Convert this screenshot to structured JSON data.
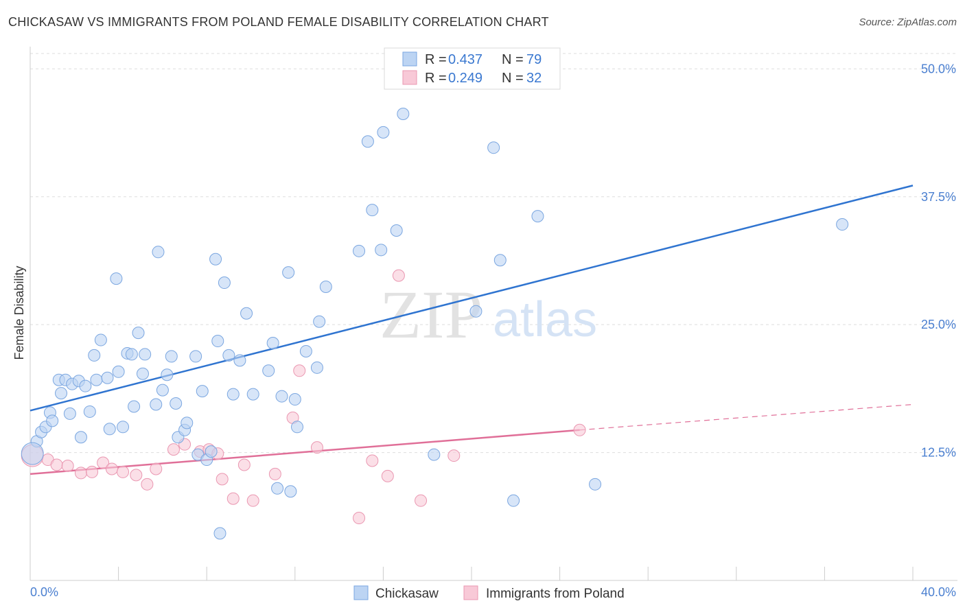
{
  "title": "CHICKASAW VS IMMIGRANTS FROM POLAND FEMALE DISABILITY CORRELATION CHART",
  "source": "Source: ZipAtlas.com",
  "watermark": {
    "zip": "ZIP",
    "atlas": "atlas"
  },
  "colors": {
    "blue_fill": "#bcd4f3",
    "blue_stroke": "#7aa6e0",
    "blue_line": "#2f74d0",
    "pink_fill": "#f8c9d7",
    "pink_stroke": "#ea97b1",
    "pink_line": "#e06f98",
    "grid": "#dddddd",
    "tick_label": "#4a7fd0"
  },
  "legend": {
    "rows": [
      {
        "r_label": "R = ",
        "r_value": "0.437",
        "n_label": "N = ",
        "n_value": "79"
      },
      {
        "r_label": "R = ",
        "r_value": "0.249",
        "n_label": "N = ",
        "n_value": "32"
      }
    ]
  },
  "chart_data": {
    "type": "scatter",
    "title": "CHICKASAW VS IMMIGRANTS FROM POLAND FEMALE DISABILITY CORRELATION CHART",
    "xlabel": "",
    "ylabel": "Female Disability",
    "xlim": [
      0,
      40
    ],
    "ylim": [
      0,
      51.5
    ],
    "x_tick_labels": [
      "0.0%",
      "40.0%"
    ],
    "y_ticks": [
      12.5,
      25.0,
      37.5,
      50.0
    ],
    "y_tick_labels": [
      "12.5%",
      "25.0%",
      "37.5%",
      "50.0%"
    ],
    "grid": "horizontal dashed",
    "legend_position": "top-center",
    "series": [
      {
        "name": "Chickasaw",
        "color": "#bcd4f3",
        "R": 0.437,
        "N": 79,
        "trend": {
          "x": [
            0,
            40
          ],
          "y": [
            16.6,
            38.6
          ],
          "style": "solid"
        },
        "points": [
          [
            0.3,
            13.6
          ],
          [
            0.5,
            14.5
          ],
          [
            0.7,
            15.0
          ],
          [
            0.9,
            16.4
          ],
          [
            1.0,
            15.6
          ],
          [
            1.3,
            19.6
          ],
          [
            1.4,
            18.3
          ],
          [
            1.6,
            19.6
          ],
          [
            1.8,
            16.3
          ],
          [
            1.9,
            19.2
          ],
          [
            2.2,
            19.5
          ],
          [
            2.3,
            14.0
          ],
          [
            2.5,
            19.0
          ],
          [
            2.7,
            16.5
          ],
          [
            2.9,
            22.0
          ],
          [
            3.0,
            19.6
          ],
          [
            3.2,
            23.5
          ],
          [
            3.5,
            19.8
          ],
          [
            3.6,
            14.8
          ],
          [
            3.9,
            29.5
          ],
          [
            4.0,
            20.4
          ],
          [
            4.2,
            15.0
          ],
          [
            4.4,
            22.2
          ],
          [
            4.6,
            22.1
          ],
          [
            4.7,
            17.0
          ],
          [
            4.9,
            24.2
          ],
          [
            5.1,
            20.2
          ],
          [
            5.2,
            22.1
          ],
          [
            5.7,
            17.2
          ],
          [
            5.8,
            32.1
          ],
          [
            6.0,
            18.6
          ],
          [
            6.2,
            20.1
          ],
          [
            6.4,
            21.9
          ],
          [
            6.6,
            17.3
          ],
          [
            6.7,
            14.0
          ],
          [
            7.0,
            14.7
          ],
          [
            7.1,
            15.4
          ],
          [
            7.5,
            21.9
          ],
          [
            7.6,
            12.3
          ],
          [
            7.8,
            18.5
          ],
          [
            8.0,
            11.8
          ],
          [
            8.2,
            12.6
          ],
          [
            8.4,
            31.4
          ],
          [
            8.5,
            23.4
          ],
          [
            8.6,
            4.6
          ],
          [
            8.8,
            29.1
          ],
          [
            9.0,
            22.0
          ],
          [
            9.2,
            18.2
          ],
          [
            9.5,
            21.5
          ],
          [
            9.8,
            26.1
          ],
          [
            10.1,
            18.2
          ],
          [
            10.8,
            20.5
          ],
          [
            11.0,
            23.2
          ],
          [
            11.2,
            9.0
          ],
          [
            11.4,
            18.0
          ],
          [
            11.7,
            30.1
          ],
          [
            11.8,
            8.7
          ],
          [
            12.0,
            17.7
          ],
          [
            12.1,
            15.0
          ],
          [
            12.5,
            22.4
          ],
          [
            13.0,
            20.8
          ],
          [
            13.1,
            25.3
          ],
          [
            13.4,
            28.7
          ],
          [
            14.9,
            32.2
          ],
          [
            15.3,
            42.9
          ],
          [
            15.5,
            36.2
          ],
          [
            15.9,
            32.3
          ],
          [
            16.0,
            43.8
          ],
          [
            16.6,
            34.2
          ],
          [
            16.9,
            45.6
          ],
          [
            18.3,
            12.3
          ],
          [
            20.2,
            26.3
          ],
          [
            21.0,
            42.3
          ],
          [
            21.3,
            31.3
          ],
          [
            21.9,
            7.8
          ],
          [
            23.0,
            35.6
          ],
          [
            25.6,
            9.4
          ],
          [
            36.8,
            34.8
          ],
          [
            0.1,
            12.4
          ]
        ]
      },
      {
        "name": "Immigrants from Poland",
        "color": "#f8c9d7",
        "R": 0.249,
        "N": 32,
        "trend": {
          "x": [
            0,
            24.9
          ],
          "y": [
            10.4,
            14.7
          ],
          "x_dashed_end": 40,
          "y_dashed_end": 17.2,
          "style": "solid then dashed"
        },
        "points": [
          [
            0.1,
            12.2
          ],
          [
            0.8,
            11.8
          ],
          [
            1.2,
            11.3
          ],
          [
            1.7,
            11.2
          ],
          [
            2.3,
            10.5
          ],
          [
            2.8,
            10.6
          ],
          [
            3.3,
            11.5
          ],
          [
            3.7,
            10.9
          ],
          [
            4.2,
            10.6
          ],
          [
            4.8,
            10.3
          ],
          [
            5.3,
            9.4
          ],
          [
            5.7,
            10.9
          ],
          [
            6.5,
            12.8
          ],
          [
            7.0,
            13.3
          ],
          [
            7.7,
            12.6
          ],
          [
            8.1,
            12.8
          ],
          [
            8.5,
            12.4
          ],
          [
            8.7,
            9.9
          ],
          [
            9.2,
            8.0
          ],
          [
            9.7,
            11.3
          ],
          [
            10.1,
            7.8
          ],
          [
            11.1,
            10.4
          ],
          [
            11.9,
            15.9
          ],
          [
            12.2,
            20.5
          ],
          [
            13.0,
            13.0
          ],
          [
            14.9,
            6.1
          ],
          [
            15.5,
            11.7
          ],
          [
            16.2,
            10.2
          ],
          [
            16.7,
            29.8
          ],
          [
            17.7,
            7.8
          ],
          [
            19.2,
            12.2
          ],
          [
            24.9,
            14.7
          ]
        ]
      }
    ]
  }
}
